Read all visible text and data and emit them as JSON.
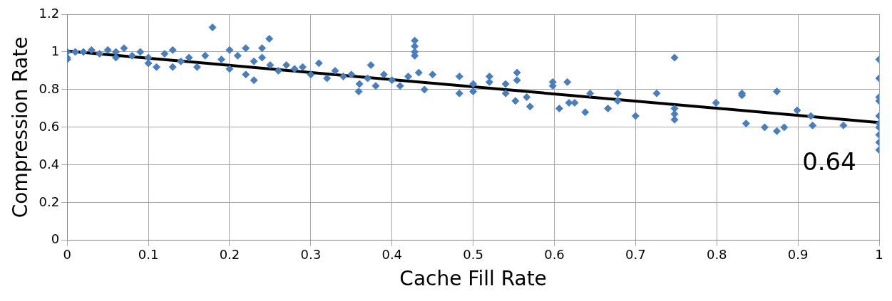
{
  "chart_data": {
    "type": "scatter",
    "xlabel": "Cache Fill Rate",
    "ylabel": "Compression Rate",
    "xlim": [
      0,
      1
    ],
    "ylim": [
      0,
      1.2
    ],
    "xticks": [
      0,
      0.1,
      0.2,
      0.3,
      0.4,
      0.5,
      0.6,
      0.7,
      0.8,
      0.9,
      1
    ],
    "yticks": [
      0,
      0.2,
      0.4,
      0.6,
      0.8,
      1,
      1.2
    ],
    "grid": true,
    "legend": false,
    "marker": "diamond",
    "series": [
      {
        "color": "#4a7ebb",
        "x": [
          0,
          0,
          0,
          0.01,
          0.02,
          0.03,
          0.04,
          0.05,
          0.06,
          0.06,
          0.07,
          0.08,
          0.09,
          0.1,
          0.1,
          0.11,
          0.12,
          0.13,
          0.13,
          0.14,
          0.15,
          0.16,
          0.17,
          0.179,
          0.19,
          0.2,
          0.2,
          0.21,
          0.22,
          0.22,
          0.23,
          0.23,
          0.24,
          0.24,
          0.249,
          0.25,
          0.26,
          0.27,
          0.28,
          0.29,
          0.3,
          0.31,
          0.32,
          0.33,
          0.34,
          0.35,
          0.359,
          0.36,
          0.37,
          0.374,
          0.38,
          0.39,
          0.4,
          0.41,
          0.42,
          0.428,
          0.428,
          0.428,
          0.428,
          0.433,
          0.44,
          0.45,
          0.483,
          0.483,
          0.5,
          0.5,
          0.52,
          0.52,
          0.54,
          0.54,
          0.554,
          0.554,
          0.552,
          0.566,
          0.57,
          0.598,
          0.598,
          0.606,
          0.616,
          0.618,
          0.625,
          0.638,
          0.644,
          0.666,
          0.678,
          0.678,
          0.7,
          0.726,
          0.748,
          0.748,
          0.748,
          0.748,
          0.799,
          0.831,
          0.831,
          0.836,
          0.859,
          0.874,
          0.874,
          0.883,
          0.899,
          0.916,
          0.918,
          0.956,
          1,
          1,
          1,
          1,
          1,
          1,
          1,
          1,
          1,
          1
        ],
        "values": [
          0.97,
          1,
          0.96,
          1,
          1,
          1.01,
          0.99,
          1.01,
          1,
          0.97,
          1.02,
          0.98,
          1,
          0.97,
          0.94,
          0.92,
          0.99,
          1.01,
          0.92,
          0.95,
          0.97,
          0.92,
          0.98,
          1.13,
          0.96,
          1.01,
          0.91,
          0.98,
          1.02,
          0.88,
          0.85,
          0.95,
          1.02,
          0.97,
          1.07,
          0.93,
          0.9,
          0.93,
          0.91,
          0.92,
          0.88,
          0.94,
          0.86,
          0.9,
          0.87,
          0.88,
          0.79,
          0.83,
          0.86,
          0.93,
          0.82,
          0.88,
          0.85,
          0.82,
          0.87,
          1.06,
          1.03,
          1,
          0.98,
          0.89,
          0.8,
          0.88,
          0.87,
          0.78,
          0.83,
          0.79,
          0.87,
          0.84,
          0.83,
          0.78,
          0.89,
          0.85,
          0.74,
          0.76,
          0.71,
          0.84,
          0.82,
          0.7,
          0.84,
          0.73,
          0.73,
          0.68,
          0.78,
          0.7,
          0.78,
          0.74,
          0.66,
          0.78,
          0.97,
          0.7,
          0.64,
          0.67,
          0.73,
          0.78,
          0.77,
          0.62,
          0.6,
          0.79,
          0.58,
          0.6,
          0.69,
          0.66,
          0.61,
          0.61,
          0.96,
          0.86,
          0.76,
          0.74,
          0.66,
          0.62,
          0.6,
          0.56,
          0.52,
          0.48
        ]
      },
      {
        "type": "line",
        "color": "#000000",
        "marker": "none",
        "x": [
          0,
          1
        ],
        "values": [
          1.005,
          0.625
        ]
      }
    ],
    "annotations": [
      "0.64"
    ]
  }
}
